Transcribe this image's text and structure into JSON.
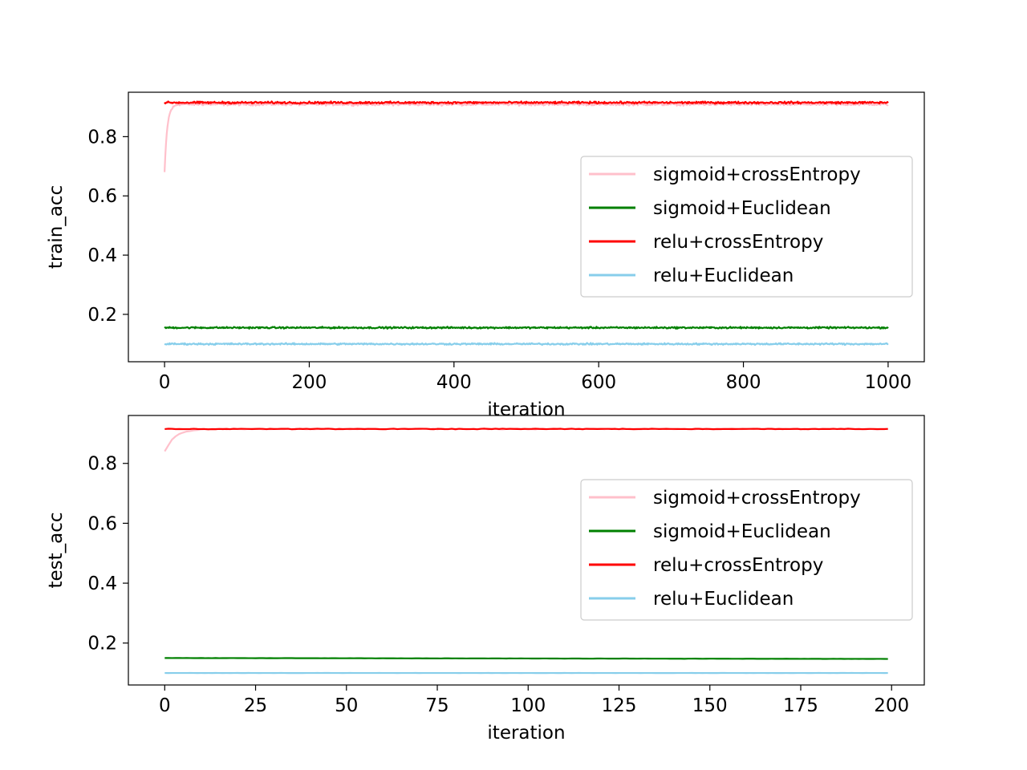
{
  "chart_data": [
    {
      "type": "line",
      "xlabel": "iteration",
      "ylabel": "train_acc",
      "xlim": [
        -50,
        1050
      ],
      "ylim": [
        0.04,
        0.95
      ],
      "xticks": [
        0,
        200,
        400,
        600,
        800,
        1000
      ],
      "yticks": [
        0.2,
        0.4,
        0.6,
        0.8
      ],
      "grid": false,
      "legend_position": "center-right",
      "x_range": [
        0,
        1000
      ],
      "series": [
        {
          "name": "sigmoid+crossEntropy",
          "color": "#ffc0cb",
          "values_summary": "starts at 0.68, rises to ~0.89 by iteration 20, ~0.91 after",
          "start": 0.68,
          "plateau": 0.91
        },
        {
          "name": "sigmoid+Euclidean",
          "color": "#008000",
          "values_summary": "flat around 0.155",
          "start": 0.155,
          "plateau": 0.155
        },
        {
          "name": "relu+crossEntropy",
          "color": "#ff0000",
          "values_summary": "flat around 0.915",
          "start": 0.915,
          "plateau": 0.915
        },
        {
          "name": "relu+Euclidean",
          "color": "#87ceeb",
          "values_summary": "flat around 0.10",
          "start": 0.1,
          "plateau": 0.1
        }
      ]
    },
    {
      "type": "line",
      "xlabel": "iteration",
      "ylabel": "test_acc",
      "xlim": [
        -10,
        209
      ],
      "ylim": [
        0.06,
        0.96
      ],
      "xticks": [
        0,
        25,
        50,
        75,
        100,
        125,
        150,
        175,
        200
      ],
      "yticks": [
        0.2,
        0.4,
        0.6,
        0.8
      ],
      "grid": false,
      "legend_position": "center-right",
      "x_range": [
        0,
        199
      ],
      "series": [
        {
          "name": "sigmoid+crossEntropy",
          "color": "#ffc0cb",
          "values_summary": "starts at 0.84, rises to ~0.90 by iteration 5, ~0.915 after",
          "start": 0.84,
          "plateau": 0.915
        },
        {
          "name": "sigmoid+Euclidean",
          "color": "#008000",
          "values_summary": "slowly declining from 0.15 to 0.147",
          "start": 0.15,
          "plateau": 0.147
        },
        {
          "name": "relu+crossEntropy",
          "color": "#ff0000",
          "values_summary": "flat around 0.915",
          "start": 0.915,
          "plateau": 0.915
        },
        {
          "name": "relu+Euclidean",
          "color": "#87ceeb",
          "values_summary": "flat at 0.10",
          "start": 0.1,
          "plateau": 0.1
        }
      ]
    }
  ]
}
